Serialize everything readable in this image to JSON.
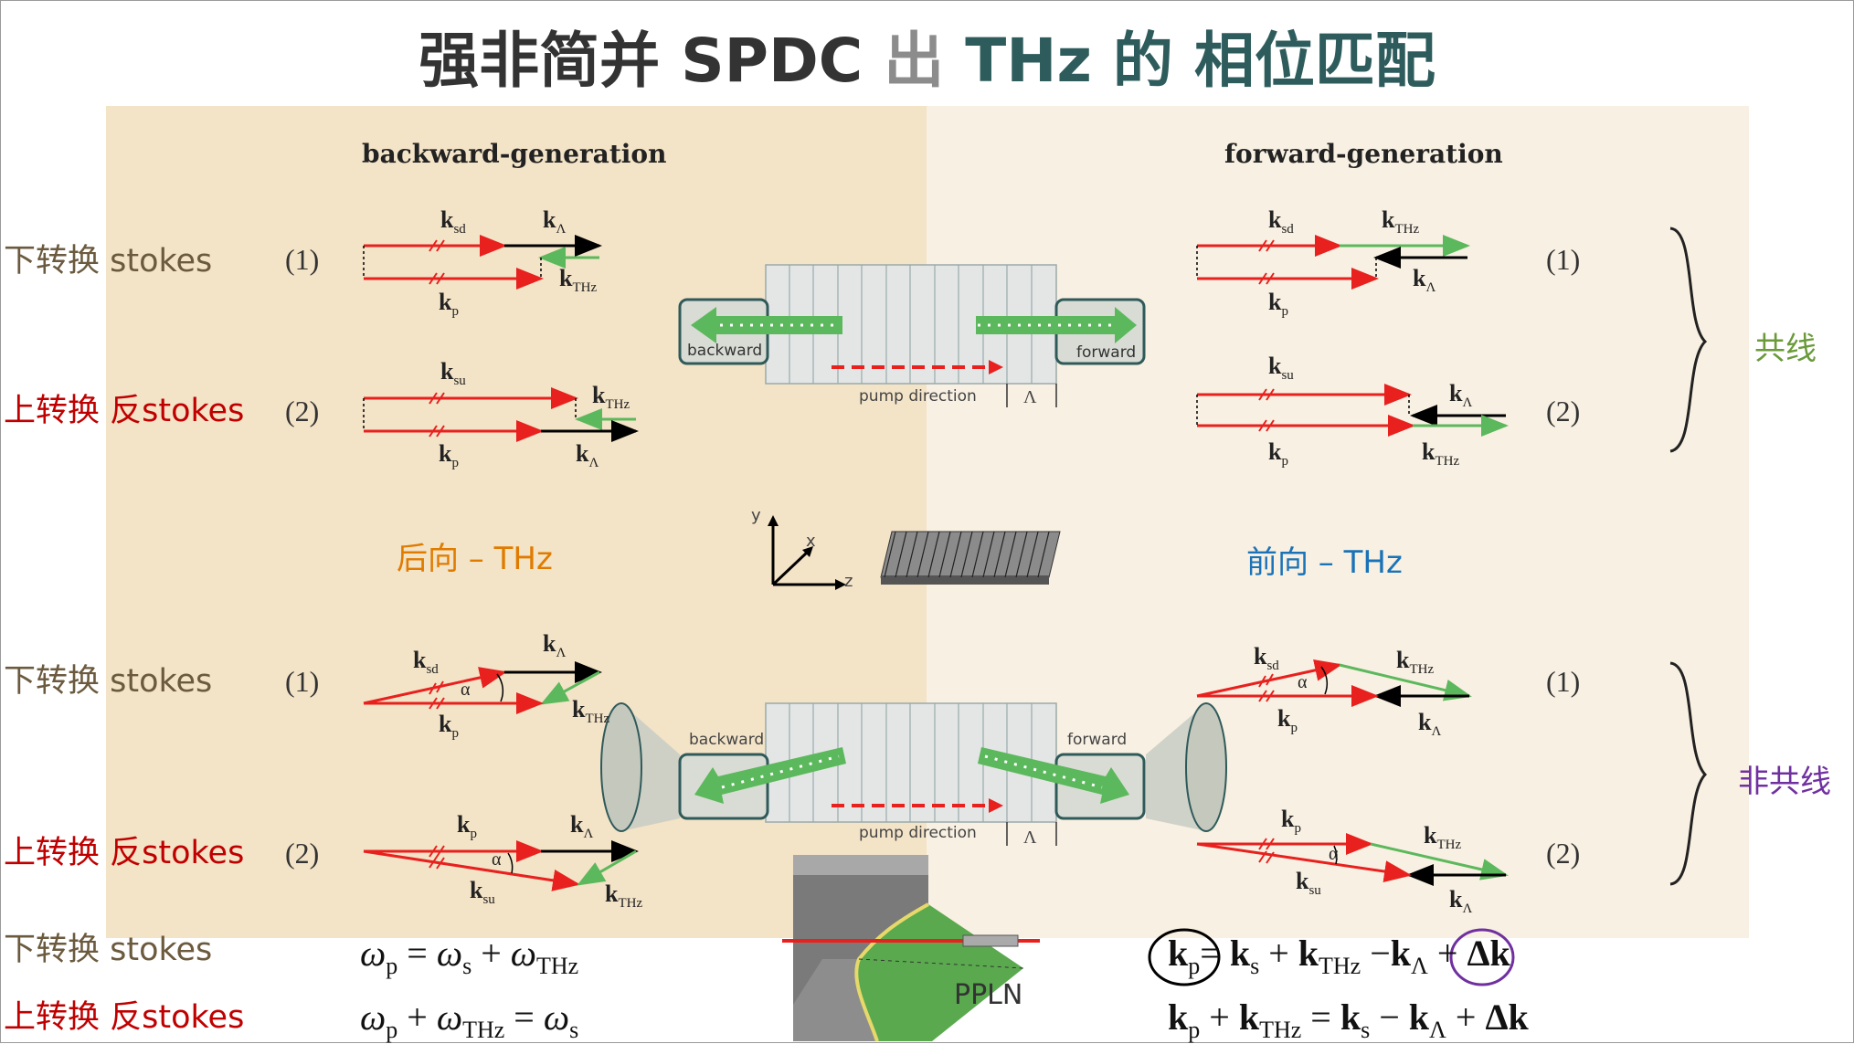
{
  "title": {
    "part1": "强非简并 SPDC ",
    "part2": "出",
    "part3": " THz 的 相位匹配"
  },
  "panel": {
    "left_header": "backward-generation",
    "right_header": "forward-generation"
  },
  "rows": [
    {
      "label_a": "下转换 stokes",
      "label_b": "",
      "num": "(1)"
    },
    {
      "label_a": "上转换 ",
      "label_b": "反stokes",
      "num": "(2)"
    },
    {
      "label_a": "下转换 stokes",
      "label_b": "",
      "num": "(1)"
    },
    {
      "label_a": "上转换 ",
      "label_b": "反stokes",
      "num": "(2)"
    },
    {
      "label_a": "下转换 stokes",
      "label_b": ""
    },
    {
      "label_a": "上转换 ",
      "label_b": "反stokes"
    }
  ],
  "right_nums": [
    "(1)",
    "(2)",
    "(1)",
    "(2)"
  ],
  "middle": {
    "backward_thz": "后向 – THz",
    "forward_thz": "前向 – THz"
  },
  "brackets": {
    "collinear": "共线",
    "noncollinear": "非共线"
  },
  "crystal": {
    "backward": "backward",
    "forward": "forward",
    "pump_direction": "pump direction",
    "period": "Λ",
    "axis_x": "x",
    "axis_y": "y",
    "axis_z": "z",
    "ppln": "PPLN"
  },
  "vectors": {
    "k_letter": "k",
    "sd": "sd",
    "su": "su",
    "p": "p",
    "thz": "THz",
    "lambda": "Λ",
    "alpha": "α"
  },
  "equations": {
    "omega": "ω",
    "sub_p": "p",
    "sub_s": "s",
    "sub_thz": "THz",
    "plus": "+",
    "eq": "=",
    "minus": "−",
    "k": "k",
    "sub_lambda": "Λ",
    "dk": "Δk"
  },
  "colors": {
    "panel_left": "#f3e3c7",
    "panel_right": "#f8f0e2",
    "red": "#e8201e",
    "green": "#5cb85c",
    "black": "#000000",
    "orange": "#e07b00",
    "blue": "#1a73b8",
    "olive": "#6a9a3a",
    "purple": "#7030a0"
  }
}
